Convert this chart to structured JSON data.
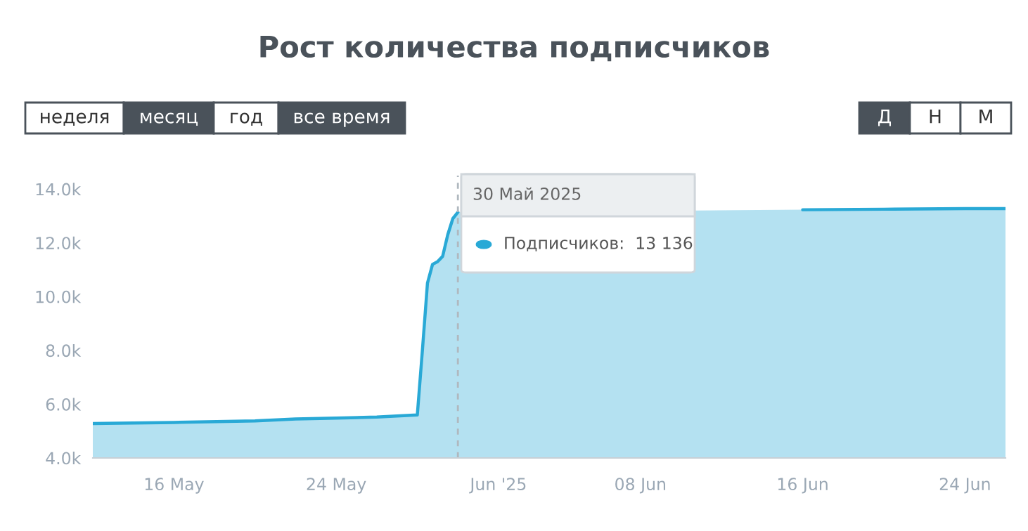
{
  "chart_data": {
    "type": "area",
    "title": "Рост количества подписчиков",
    "x": [
      "2025-05-12",
      "2025-05-16",
      "2025-05-20",
      "2025-05-22",
      "2025-05-24",
      "2025-05-26",
      "2025-05-27",
      "2025-05-28T00:00",
      "2025-05-28T06:00",
      "2025-05-28T12:00",
      "2025-05-28T18:00",
      "2025-05-29T00:00",
      "2025-05-29T06:00",
      "2025-05-29T12:00",
      "2025-05-29T18:00",
      "2025-05-30",
      "2025-06-01",
      "2025-06-05",
      "2025-06-10",
      "2025-06-16",
      "2025-06-20",
      "2025-06-24",
      "2025-06-26"
    ],
    "series": [
      {
        "color": "#29a9d6",
        "values": [
          5280,
          5320,
          5380,
          5450,
          5480,
          5520,
          5560,
          5600,
          8000,
          10500,
          11200,
          11300,
          11500,
          12300,
          12900,
          13136,
          null,
          null,
          null,
          13230,
          13250,
          13270,
          13270
        ]
      }
    ],
    "xlim": [
      "2025-05-12",
      "2025-06-26"
    ],
    "xticks": [
      {
        "value": "2025-05-16",
        "label": "16 May"
      },
      {
        "value": "2025-05-24",
        "label": "24 May"
      },
      {
        "value": "2025-06-01",
        "label": "Jun '25"
      },
      {
        "value": "2025-06-08",
        "label": "08 Jun"
      },
      {
        "value": "2025-06-16",
        "label": "16 Jun"
      },
      {
        "value": "2025-06-24",
        "label": "24 Jun"
      }
    ],
    "ylim": [
      4000,
      14500
    ],
    "yticks": [
      {
        "value": 4000,
        "label": "4.0k"
      },
      {
        "value": 6000,
        "label": "6.0k"
      },
      {
        "value": 8000,
        "label": "8.0k"
      },
      {
        "value": 10000,
        "label": "10.0k"
      },
      {
        "value": 12000,
        "label": "12.0k"
      },
      {
        "value": 14000,
        "label": "14.0k"
      }
    ],
    "grid": false,
    "legend": false,
    "ref_lines": [
      {
        "axis": "x",
        "value": "2025-05-30",
        "color": "#b0b8bf",
        "line_style": "dashed"
      }
    ],
    "annotations": [
      "неделя",
      "месяц",
      "год",
      "все время",
      "Д",
      "Н",
      "М",
      "30 Май 2025",
      "Подписчиков:  13 136"
    ]
  }
}
